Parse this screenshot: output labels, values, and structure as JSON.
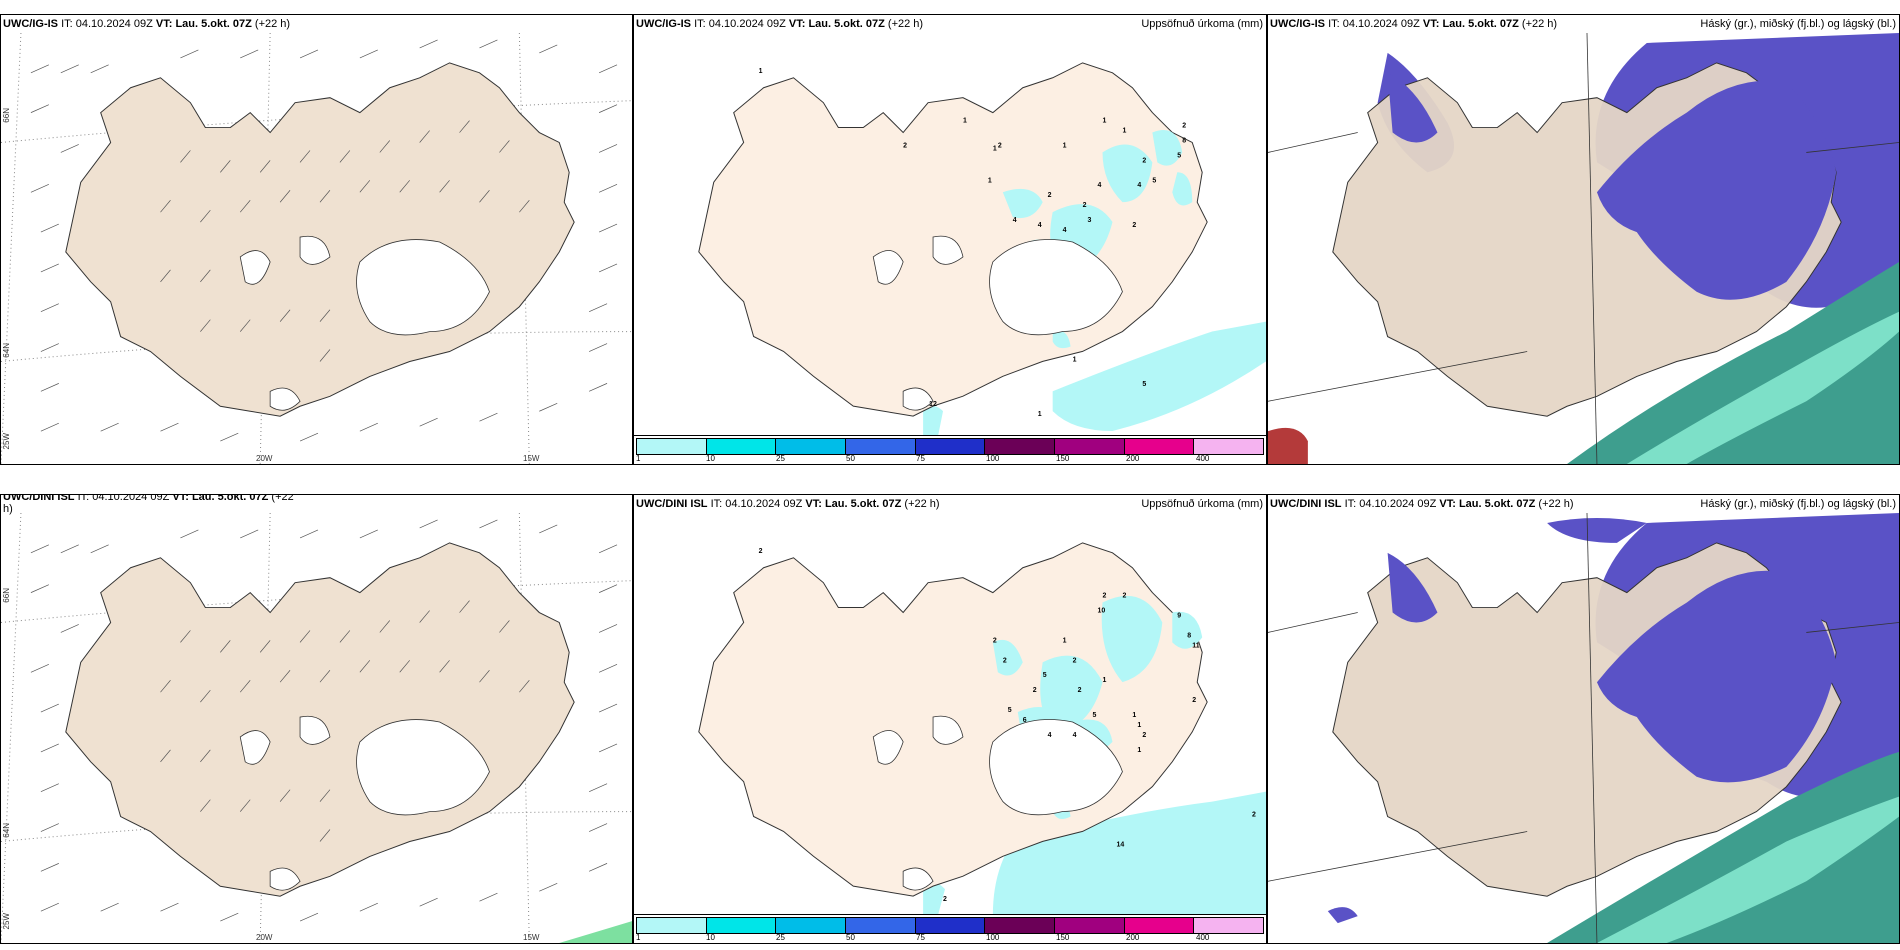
{
  "rows": [
    {
      "model": "UWC/IG-IS",
      "it_label": "IT:",
      "it_value": "04.10.2024 09Z",
      "vt_label": "VT: Lau. 5.okt. 07Z",
      "lead": "(+22 h)",
      "precip_numbers": [
        "1",
        "1",
        "2",
        "2",
        "1",
        "1",
        "1",
        "1",
        "1",
        "2",
        "2",
        "8",
        "5",
        "5",
        "4",
        "2",
        "2",
        "4",
        "4",
        "4",
        "3",
        "2",
        "4",
        "1",
        "12",
        "5",
        "1"
      ]
    },
    {
      "model": "UWC/DINI ISL",
      "it_label": "IT:",
      "it_value": "04.10.2024 09Z",
      "vt_label": "VT: Lau. 5.okt. 07Z",
      "lead": "(+22 h)",
      "precip_numbers": [
        "2",
        "2",
        "2",
        "10",
        "9",
        "8",
        "11",
        "2",
        "2",
        "1",
        "2",
        "5",
        "2",
        "2",
        "1",
        "5",
        "6",
        "4",
        "4",
        "5",
        "1",
        "1",
        "2",
        "1",
        "2",
        "2",
        "14",
        "2"
      ]
    }
  ],
  "panel_titles": {
    "precip": "Uppsöfnuð úrkoma (mm)",
    "cloud": "Háský (gr.), miðský (fj.bl.) og lágský (bl.)"
  },
  "axis_labels": {
    "lat_66": "66N",
    "lat_64": "64N",
    "lon_25": "25W",
    "lon_20": "20W",
    "lon_15": "15W"
  },
  "colorbar": {
    "labels": [
      "1",
      "10",
      "25",
      "50",
      "75",
      "100",
      "150",
      "200",
      "400"
    ],
    "colors": [
      "#b3f7f7",
      "#00e5e8",
      "#00bde8",
      "#3366e8",
      "#1f2fc9",
      "#6b0057",
      "#a0007f",
      "#e6008c",
      "#f5b3f0"
    ]
  },
  "colors": {
    "land": "#efe1d1",
    "land_precip": "#fcefe3",
    "precip_light": "#b3f7f7",
    "cloud_high": "#5a52c6",
    "cloud_mid": "#3e9e8e",
    "cloud_low": "#7de0c8",
    "snow_white": "#ffffff"
  }
}
